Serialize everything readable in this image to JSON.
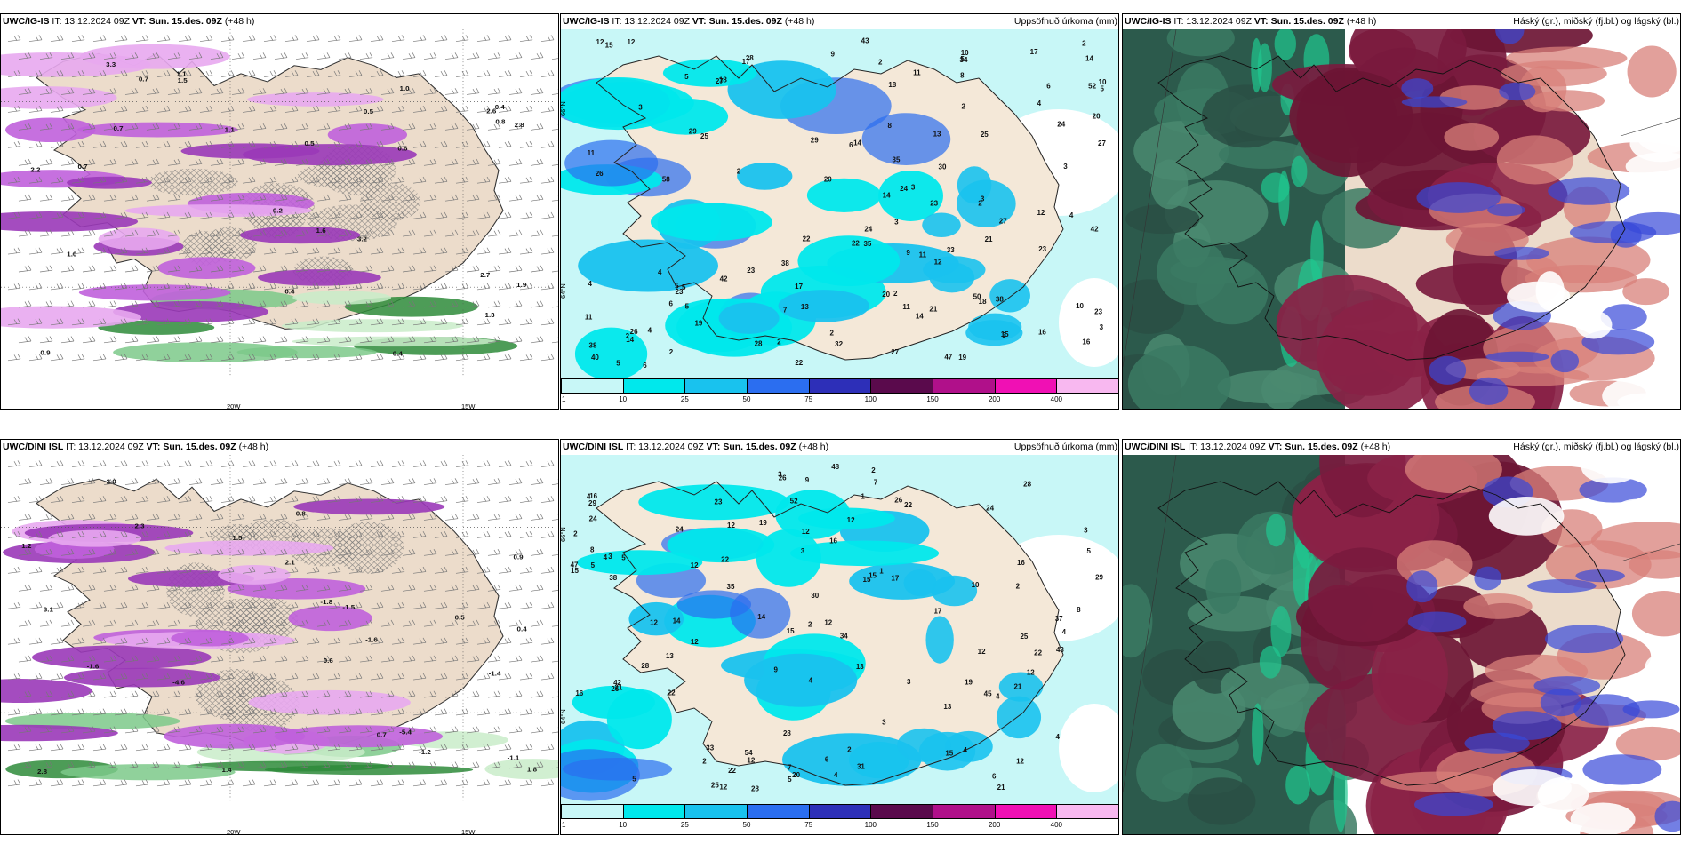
{
  "panels": [
    {
      "model": "UWC/IG-IS",
      "it": "IT: 13.12.2024 09Z",
      "vt_label": "VT:",
      "vt": "Sun. 15.des. 09Z",
      "lead": "(+48 h)",
      "right": ""
    },
    {
      "model": "UWC/IG-IS",
      "it": "IT: 13.12.2024 09Z",
      "vt_label": "VT:",
      "vt": "Sun. 15.des. 09Z",
      "lead": "(+48 h)",
      "right": "Uppsöfnuð úrkoma (mm)"
    },
    {
      "model": "UWC/IG-IS",
      "it": "IT: 13.12.2024 09Z",
      "vt_label": "VT:",
      "vt": "Sun. 15.des. 09Z",
      "lead": "(+48 h)",
      "right": "Háský (gr.), miðský (fj.bl.) og lágský (bl.)"
    },
    {
      "model": "UWC/DINI ISL",
      "it": "IT: 13.12.2024 09Z",
      "vt_label": "VT:",
      "vt": "Sun. 15.des. 09Z",
      "lead": "(+48 h)",
      "right": ""
    },
    {
      "model": "UWC/DINI ISL",
      "it": "IT: 13.12.2024 09Z",
      "vt_label": "VT:",
      "vt": "Sun. 15.des. 09Z",
      "lead": "(+48 h)",
      "right": "Uppsöfnuð úrkoma (mm)"
    },
    {
      "model": "UWC/DINI ISL",
      "it": "IT: 13.12.2024 09Z",
      "vt_label": "VT:",
      "vt": "Sun. 15.des. 09Z",
      "lead": "(+48 h)",
      "right": "Háský (gr.), miðský (fj.bl.) og lágský (bl.)"
    }
  ],
  "lon_labels": [
    "20W",
    "15W"
  ],
  "lat_labels": [
    "66°N",
    "64°N"
  ],
  "colorbar": {
    "labels": [
      "1",
      "10",
      "25",
      "50",
      "75",
      "100",
      "150",
      "200",
      "400"
    ],
    "colors": [
      "#c8f7f7",
      "#00e8ec",
      "#19c2ee",
      "#2b6ef0",
      "#2d2fb8",
      "#5a0a4c",
      "#b0108a",
      "#f010b4",
      "#f8b8f0"
    ]
  },
  "precip_top_values": [
    "9",
    "3",
    "3",
    "5",
    "4",
    "4",
    "3",
    "3",
    "12",
    "11",
    "11",
    "18",
    "23",
    "17",
    "24",
    "29",
    "19",
    "23",
    "23",
    "20",
    "6",
    "21",
    "18",
    "15",
    "24",
    "35",
    "14",
    "11",
    "13",
    "30",
    "42",
    "14",
    "24",
    "38",
    "38",
    "14",
    "22",
    "23",
    "26",
    "27",
    "17",
    "28",
    "16",
    "14",
    "13",
    "28",
    "23",
    "29",
    "25",
    "42",
    "27",
    "40",
    "34",
    "9",
    "26",
    "20",
    "33",
    "27",
    "43",
    "35",
    "38",
    "27",
    "32",
    "12",
    "10",
    "16",
    "12",
    "11",
    "11",
    "10",
    "8",
    "18",
    "19",
    "17",
    "14",
    "15",
    "22",
    "22",
    "21",
    "12",
    "20",
    "47",
    "25",
    "52",
    "58",
    "50",
    "10",
    "6",
    "7",
    "8",
    "5",
    "4",
    "6",
    "5",
    "3",
    "2",
    "2",
    "3",
    "3",
    "2",
    "5",
    "5",
    "6",
    "4",
    "2",
    "2",
    "2",
    "2",
    "2",
    "2",
    "2",
    "5",
    "5",
    "4"
  ],
  "precip_bottom_values": [
    "12",
    "7",
    "2",
    "4",
    "4",
    "4",
    "3",
    "3",
    "4",
    "17",
    "13",
    "30",
    "21",
    "15",
    "20",
    "26",
    "22",
    "12",
    "25",
    "37",
    "29",
    "28",
    "22",
    "33",
    "15",
    "24",
    "35",
    "25",
    "29",
    "12",
    "14",
    "12",
    "16",
    "15",
    "28",
    "19",
    "28",
    "26",
    "21",
    "16",
    "12",
    "17",
    "13",
    "12",
    "12",
    "10",
    "24",
    "21",
    "31",
    "12",
    "23",
    "22",
    "19",
    "12",
    "42",
    "43",
    "22",
    "34",
    "38",
    "45",
    "12",
    "15",
    "16",
    "54",
    "15",
    "28",
    "26",
    "16",
    "24",
    "47",
    "22",
    "12",
    "48",
    "52",
    "3",
    "14",
    "12",
    "13",
    "9",
    "8",
    "5",
    "7",
    "8",
    "9",
    "4",
    "5",
    "6",
    "4",
    "2",
    "5",
    "2",
    "1",
    "2",
    "1",
    "3",
    "3",
    "3",
    "2",
    "2",
    "6",
    "5",
    "4",
    "5",
    "4"
  ],
  "wind_temp_top": [
    "0.5",
    "0.4",
    "1.1",
    "0.4",
    "3.2",
    "2.6",
    "3.3",
    "0.7",
    "2.8",
    "1.0",
    "1.6",
    "2.7",
    "1.9",
    "2.2",
    "0.9",
    "0.7",
    "1.3",
    "0.6",
    "0.4",
    "0.5",
    "1.5",
    "0.8",
    "1.1",
    "1.0",
    "0.7",
    "0.2"
  ],
  "wind_temp_bottom": [
    "-5.4",
    "-4.6",
    "-1.6",
    "-1.6",
    "-1.4",
    "1.8",
    "2.1",
    "0.9",
    "0.5",
    "2.3",
    "-1.2",
    "-1.8",
    "0.6",
    "0.7",
    "0.8",
    "-1.1",
    "3.1",
    "2.8",
    "-1.5",
    "2.0",
    "1.5",
    "0.4",
    "1.4",
    "1.2"
  ]
}
